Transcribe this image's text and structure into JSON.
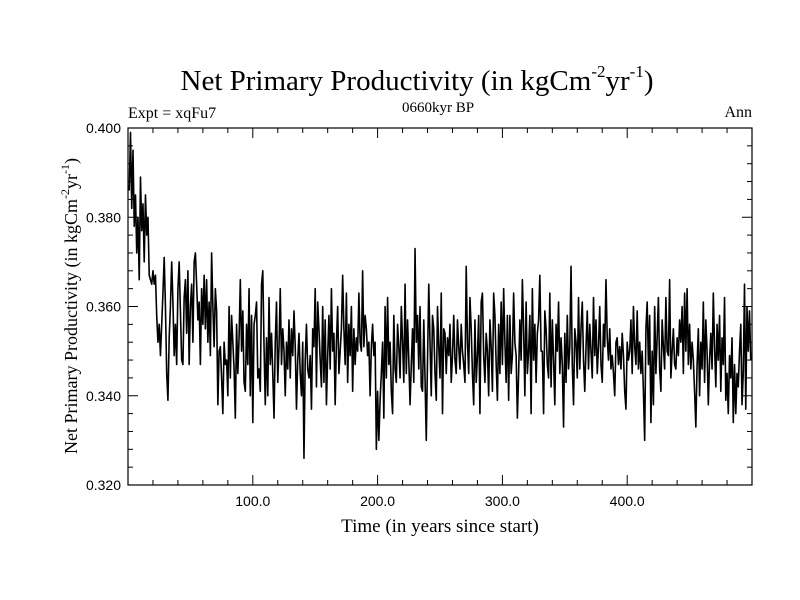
{
  "chart_data": {
    "type": "line",
    "title_main": "Net Primary Productivity (in kgCm",
    "title_sup1": "-2",
    "title_mid": "yr",
    "title_sup2": "-1",
    "title_end": ")",
    "subtitle_left": "Expt = xqFu7",
    "subtitle_center": "0660kyr BP",
    "subtitle_right": "Ann",
    "xlabel": "Time (in years since start)",
    "ylabel_main": "Net Primary Productivity (in kgCm",
    "ylabel_sup1": "-2",
    "ylabel_mid": "yr",
    "ylabel_sup2": "-1",
    "ylabel_end": ")",
    "xlim": [
      0,
      500
    ],
    "ylim": [
      0.32,
      0.4
    ],
    "x_ticks": [
      100,
      200,
      300,
      400
    ],
    "x_tick_labels": [
      "100.0",
      "200.0",
      "300.0",
      "400.0"
    ],
    "y_ticks": [
      0.32,
      0.34,
      0.36,
      0.38,
      0.4
    ],
    "y_tick_labels": [
      "0.320",
      "0.340",
      "0.360",
      "0.380",
      "0.400"
    ],
    "series": [
      {
        "name": "Net Primary Productivity",
        "color": "#000000",
        "x_start": 1,
        "x_step": 1,
        "values": [
          0.386,
          0.399,
          0.382,
          0.395,
          0.378,
          0.385,
          0.372,
          0.38,
          0.366,
          0.389,
          0.377,
          0.383,
          0.37,
          0.385,
          0.376,
          0.38,
          0.367,
          0.366,
          0.365,
          0.368,
          0.365,
          0.367,
          0.358,
          0.352,
          0.356,
          0.349,
          0.356,
          0.363,
          0.371,
          0.36,
          0.345,
          0.339,
          0.353,
          0.36,
          0.37,
          0.361,
          0.349,
          0.356,
          0.347,
          0.364,
          0.37,
          0.359,
          0.348,
          0.347,
          0.362,
          0.366,
          0.354,
          0.368,
          0.347,
          0.36,
          0.365,
          0.352,
          0.37,
          0.372,
          0.365,
          0.357,
          0.361,
          0.347,
          0.364,
          0.356,
          0.367,
          0.355,
          0.366,
          0.352,
          0.361,
          0.349,
          0.372,
          0.36,
          0.351,
          0.364,
          0.359,
          0.338,
          0.35,
          0.351,
          0.344,
          0.336,
          0.352,
          0.347,
          0.348,
          0.34,
          0.36,
          0.344,
          0.358,
          0.352,
          0.346,
          0.335,
          0.356,
          0.345,
          0.353,
          0.366,
          0.35,
          0.359,
          0.343,
          0.341,
          0.356,
          0.347,
          0.364,
          0.34,
          0.358,
          0.334,
          0.356,
          0.358,
          0.361,
          0.344,
          0.346,
          0.341,
          0.365,
          0.368,
          0.351,
          0.338,
          0.353,
          0.34,
          0.362,
          0.347,
          0.354,
          0.345,
          0.335,
          0.352,
          0.361,
          0.343,
          0.351,
          0.364,
          0.347,
          0.355,
          0.35,
          0.34,
          0.352,
          0.346,
          0.357,
          0.344,
          0.355,
          0.349,
          0.359,
          0.351,
          0.337,
          0.348,
          0.354,
          0.345,
          0.34,
          0.352,
          0.326,
          0.348,
          0.356,
          0.346,
          0.344,
          0.349,
          0.337,
          0.355,
          0.351,
          0.364,
          0.342,
          0.361,
          0.355,
          0.348,
          0.342,
          0.36,
          0.343,
          0.357,
          0.338,
          0.349,
          0.358,
          0.346,
          0.364,
          0.35,
          0.354,
          0.338,
          0.352,
          0.36,
          0.345,
          0.35,
          0.355,
          0.367,
          0.355,
          0.347,
          0.363,
          0.343,
          0.356,
          0.349,
          0.36,
          0.341,
          0.355,
          0.347,
          0.353,
          0.35,
          0.363,
          0.352,
          0.35,
          0.368,
          0.351,
          0.358,
          0.355,
          0.349,
          0.352,
          0.34,
          0.351,
          0.356,
          0.349,
          0.352,
          0.328,
          0.341,
          0.33,
          0.339,
          0.345,
          0.352,
          0.335,
          0.36,
          0.344,
          0.362,
          0.347,
          0.352,
          0.341,
          0.336,
          0.358,
          0.346,
          0.343,
          0.356,
          0.351,
          0.344,
          0.36,
          0.352,
          0.343,
          0.365,
          0.345,
          0.357,
          0.348,
          0.338,
          0.347,
          0.355,
          0.343,
          0.373,
          0.352,
          0.358,
          0.346,
          0.36,
          0.342,
          0.341,
          0.357,
          0.344,
          0.33,
          0.348,
          0.365,
          0.352,
          0.34,
          0.358,
          0.355,
          0.345,
          0.339,
          0.36,
          0.351,
          0.344,
          0.363,
          0.336,
          0.355,
          0.354,
          0.345,
          0.353,
          0.349,
          0.356,
          0.343,
          0.349,
          0.358,
          0.348,
          0.345,
          0.357,
          0.351,
          0.346,
          0.356,
          0.35,
          0.347,
          0.343,
          0.369,
          0.352,
          0.345,
          0.362,
          0.355,
          0.345,
          0.338,
          0.357,
          0.343,
          0.349,
          0.358,
          0.336,
          0.361,
          0.363,
          0.349,
          0.343,
          0.354,
          0.35,
          0.34,
          0.357,
          0.351,
          0.341,
          0.363,
          0.358,
          0.347,
          0.339,
          0.356,
          0.345,
          0.361,
          0.347,
          0.364,
          0.352,
          0.343,
          0.358,
          0.339,
          0.358,
          0.345,
          0.349,
          0.363,
          0.352,
          0.349,
          0.335,
          0.345,
          0.357,
          0.348,
          0.366,
          0.355,
          0.34,
          0.361,
          0.345,
          0.35,
          0.358,
          0.336,
          0.364,
          0.348,
          0.356,
          0.343,
          0.354,
          0.357,
          0.367,
          0.35,
          0.35,
          0.336,
          0.359,
          0.355,
          0.347,
          0.344,
          0.363,
          0.342,
          0.357,
          0.348,
          0.338,
          0.356,
          0.35,
          0.361,
          0.345,
          0.353,
          0.347,
          0.333,
          0.354,
          0.343,
          0.358,
          0.346,
          0.351,
          0.369,
          0.347,
          0.338,
          0.355,
          0.352,
          0.344,
          0.362,
          0.346,
          0.355,
          0.361,
          0.348,
          0.341,
          0.351,
          0.359,
          0.346,
          0.356,
          0.35,
          0.344,
          0.362,
          0.349,
          0.357,
          0.345,
          0.351,
          0.36,
          0.347,
          0.343,
          0.356,
          0.351,
          0.366,
          0.353,
          0.348,
          0.355,
          0.346,
          0.349,
          0.345,
          0.34,
          0.352,
          0.353,
          0.347,
          0.351,
          0.346,
          0.354,
          0.349,
          0.341,
          0.337,
          0.352,
          0.348,
          0.35,
          0.357,
          0.345,
          0.36,
          0.351,
          0.347,
          0.359,
          0.346,
          0.352,
          0.345,
          0.35,
          0.341,
          0.33,
          0.355,
          0.361,
          0.347,
          0.358,
          0.334,
          0.35,
          0.338,
          0.36,
          0.345,
          0.353,
          0.362,
          0.346,
          0.341,
          0.357,
          0.351,
          0.346,
          0.362,
          0.35,
          0.349,
          0.366,
          0.344,
          0.35,
          0.355,
          0.347,
          0.346,
          0.353,
          0.349,
          0.357,
          0.352,
          0.36,
          0.345,
          0.363,
          0.35,
          0.364,
          0.347,
          0.356,
          0.346,
          0.352,
          0.348,
          0.341,
          0.333,
          0.347,
          0.355,
          0.34,
          0.352,
          0.346,
          0.361,
          0.343,
          0.357,
          0.35,
          0.338,
          0.348,
          0.354,
          0.346,
          0.363,
          0.351,
          0.342,
          0.356,
          0.348,
          0.358,
          0.341,
          0.353,
          0.347,
          0.362,
          0.339,
          0.345,
          0.336,
          0.349,
          0.344,
          0.353,
          0.334,
          0.347,
          0.336,
          0.345,
          0.342,
          0.35,
          0.356,
          0.338,
          0.345,
          0.365,
          0.337,
          0.36,
          0.35,
          0.359,
          0.348
        ]
      }
    ]
  }
}
